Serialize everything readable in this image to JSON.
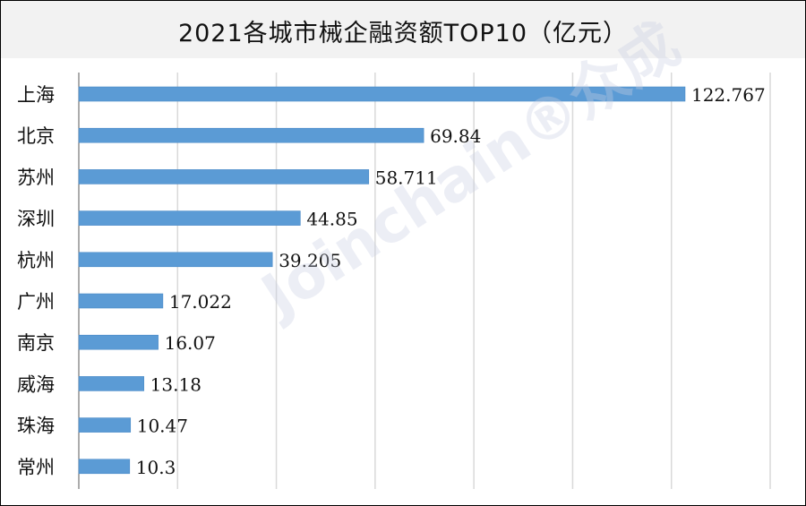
{
  "chart_data": {
    "type": "bar",
    "orientation": "horizontal",
    "title": "2021各城市械企融资额TOP10（亿元）",
    "categories": [
      "上海",
      "北京",
      "苏州",
      "深圳",
      "杭州",
      "广州",
      "南京",
      "威海",
      "珠海",
      "常州"
    ],
    "values": [
      122.767,
      69.84,
      58.711,
      44.85,
      39.205,
      17.022,
      16.07,
      13.18,
      10.47,
      10.3
    ],
    "value_labels": [
      "122.767",
      "69.84",
      "58.711",
      "44.85",
      "39.205",
      "17.022",
      "16.07",
      "13.18",
      "10.47",
      "10.3"
    ],
    "xlim": [
      0,
      140
    ],
    "grid_step": 20,
    "grid": true,
    "bar_color": "#5b9bd5",
    "xlabel": "",
    "ylabel": ""
  },
  "watermark": "Joinchain®众成"
}
